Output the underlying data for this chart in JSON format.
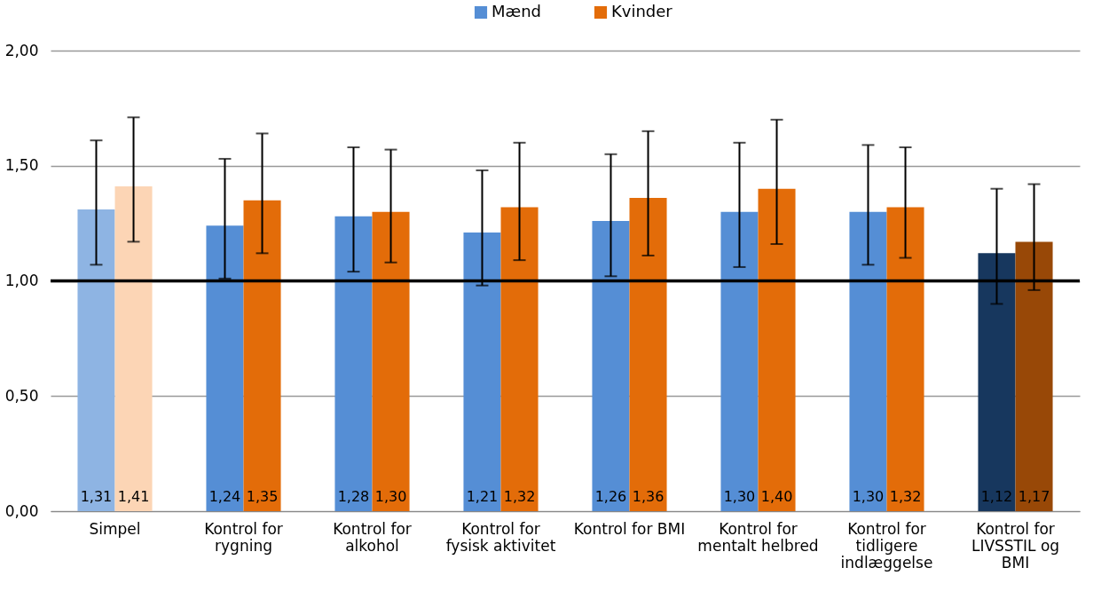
{
  "chart_data": {
    "type": "bar",
    "categories": [
      "Simpel",
      "Kontrol for rygning",
      "Kontrol for alkohol",
      "Kontrol for fysisk aktivitet",
      "Kontrol for BMI",
      "Kontrol for mentalt helbred",
      "Kontrol for tidligere indlæggelse",
      "Kontrol for LIVSSTIL og BMI"
    ],
    "series": [
      {
        "name": "Mænd",
        "color": "#558ed5",
        "colors": [
          "#8eb4e3",
          "#558ed5",
          "#558ed5",
          "#558ed5",
          "#558ed5",
          "#558ed5",
          "#558ed5",
          "#17375e"
        ],
        "values": [
          1.31,
          1.24,
          1.28,
          1.21,
          1.26,
          1.3,
          1.3,
          1.12
        ],
        "errors": [
          [
            1.07,
            1.61
          ],
          [
            1.01,
            1.53
          ],
          [
            1.04,
            1.58
          ],
          [
            0.98,
            1.48
          ],
          [
            1.02,
            1.55
          ],
          [
            1.06,
            1.6
          ],
          [
            1.07,
            1.59
          ],
          [
            0.9,
            1.4
          ]
        ],
        "value_labels": [
          "1,31",
          "1,24",
          "1,28",
          "1,21",
          "1,26",
          "1,30",
          "1,30",
          "1,12"
        ]
      },
      {
        "name": "Kvinder",
        "color": "#e36c09",
        "colors": [
          "#fcd5b5",
          "#e36c09",
          "#e36c09",
          "#e36c09",
          "#e36c09",
          "#e36c09",
          "#e36c09",
          "#984807"
        ],
        "values": [
          1.41,
          1.35,
          1.3,
          1.32,
          1.36,
          1.4,
          1.32,
          1.17
        ],
        "errors": [
          [
            1.17,
            1.71
          ],
          [
            1.12,
            1.64
          ],
          [
            1.08,
            1.57
          ],
          [
            1.09,
            1.6
          ],
          [
            1.11,
            1.65
          ],
          [
            1.16,
            1.7
          ],
          [
            1.1,
            1.58
          ],
          [
            0.96,
            1.42
          ]
        ],
        "value_labels": [
          "1,41",
          "1,35",
          "1,30",
          "1,32",
          "1,36",
          "1,40",
          "1,32",
          "1,17"
        ]
      }
    ],
    "ylim": [
      0,
      2
    ],
    "yticks": [
      {
        "value": 0,
        "label": "0,00"
      },
      {
        "value": 0.5,
        "label": "0,50"
      },
      {
        "value": 1,
        "label": "1,00"
      },
      {
        "value": 1.5,
        "label": "1,50"
      },
      {
        "value": 2,
        "label": "2,00"
      }
    ],
    "ref_lines": [
      {
        "axis": "y",
        "value": 1,
        "color": "#000000"
      }
    ],
    "grid": "y",
    "legend": "top"
  }
}
